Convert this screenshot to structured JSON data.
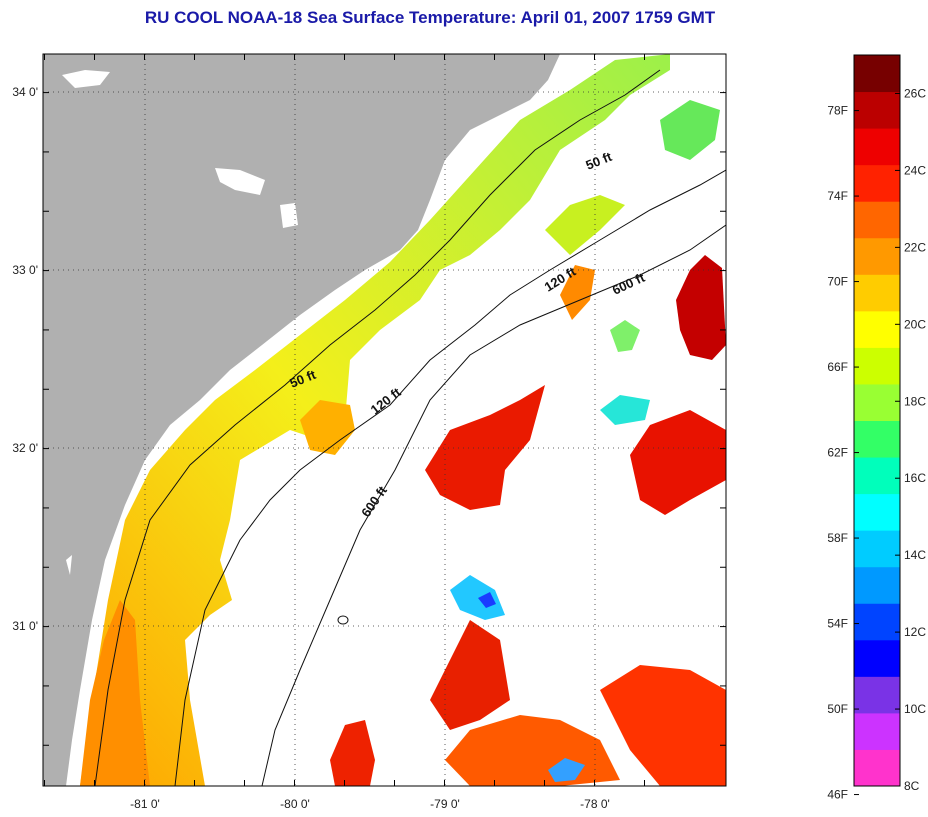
{
  "title": "RU COOL  NOAA-18  Sea Surface Temperature:  April 01, 2007 1759 GMT",
  "map": {
    "lat_ticks": [
      {
        "lat": 34,
        "label": "34 0'"
      },
      {
        "lat": 33,
        "label": "33 0'"
      },
      {
        "lat": 32,
        "label": "32 0'"
      },
      {
        "lat": 31,
        "label": "31 0'"
      }
    ],
    "lon_ticks": [
      {
        "lon": -81,
        "label": "-81 0'"
      },
      {
        "lon": -80,
        "label": "-80 0'"
      },
      {
        "lon": -79,
        "label": "-79 0'"
      },
      {
        "lon": -78,
        "label": "-78 0'"
      }
    ],
    "contours": [
      {
        "label": "50 ft"
      },
      {
        "label": "50 ft"
      },
      {
        "label": "120 ft"
      },
      {
        "label": "120 ft"
      },
      {
        "label": "600 ft"
      },
      {
        "label": "600 ft"
      }
    ]
  },
  "colorbar": {
    "colors": [
      "#ff33cc",
      "#cc33ff",
      "#7a33e6",
      "#0000ff",
      "#0044ff",
      "#0099ff",
      "#00ccff",
      "#00ffff",
      "#00ffbb",
      "#33ff66",
      "#99ff33",
      "#ccff00",
      "#ffff00",
      "#ffcc00",
      "#ff9900",
      "#ff6600",
      "#ff2200",
      "#ee0000",
      "#bb0000",
      "#770000"
    ],
    "fahrenheit": [
      {
        "value": 78,
        "label": "78F"
      },
      {
        "value": 74,
        "label": "74F"
      },
      {
        "value": 70,
        "label": "70F"
      },
      {
        "value": 66,
        "label": "66F"
      },
      {
        "value": 62,
        "label": "62F"
      },
      {
        "value": 58,
        "label": "58F"
      },
      {
        "value": 54,
        "label": "54F"
      },
      {
        "value": 50,
        "label": "50F"
      },
      {
        "value": 46,
        "label": "46F"
      }
    ],
    "celsius": [
      {
        "value": 26,
        "label": "26C"
      },
      {
        "value": 24,
        "label": "24C"
      },
      {
        "value": 22,
        "label": "22C"
      },
      {
        "value": 20,
        "label": "20C"
      },
      {
        "value": 18,
        "label": "18C"
      },
      {
        "value": 16,
        "label": "16C"
      },
      {
        "value": 14,
        "label": "14C"
      },
      {
        "value": 12,
        "label": "12C"
      },
      {
        "value": 10,
        "label": "10C"
      },
      {
        "value": 8,
        "label": "8C"
      }
    ]
  }
}
